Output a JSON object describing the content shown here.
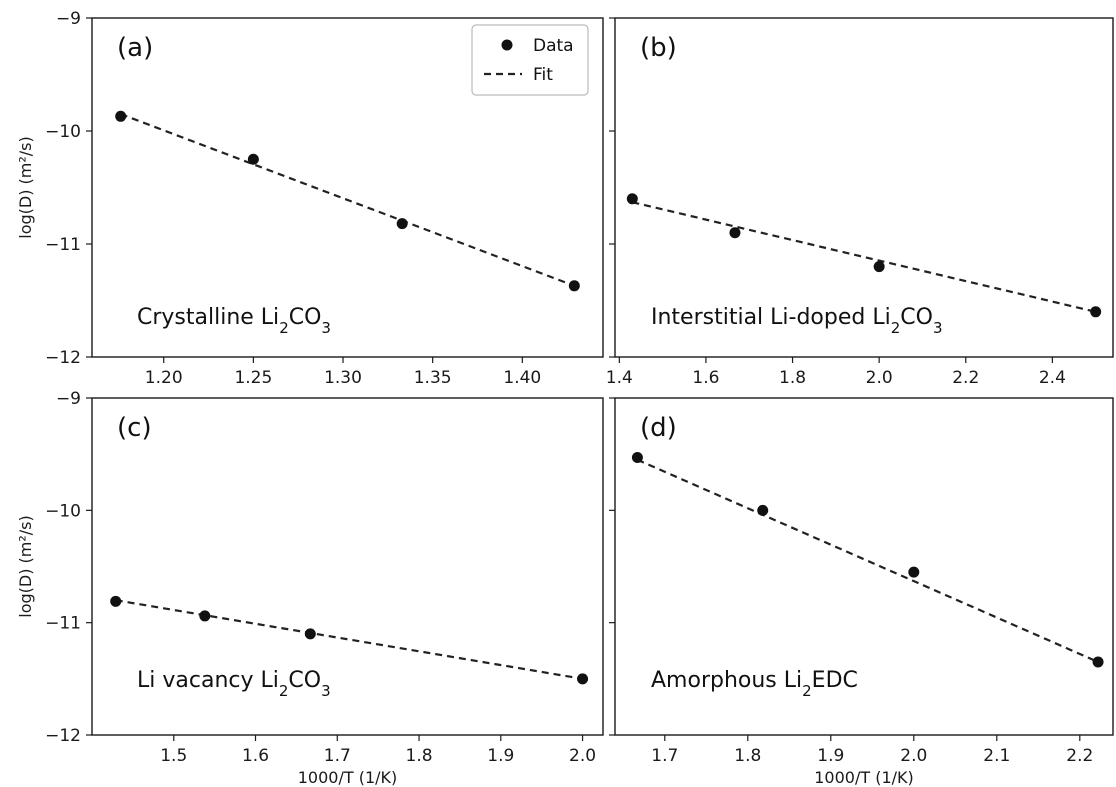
{
  "chart_data": [
    {
      "type": "scatter",
      "panel_label": "(a)",
      "annotation": {
        "prefix": "Crystalline Li",
        "sub1": "2",
        "mid": "CO",
        "sub2": "3",
        "suffix": ""
      },
      "ylabel": "log(D) (m²/s)",
      "xlabel": "",
      "xlim": [
        1.16,
        1.445
      ],
      "ylim": [
        -12,
        -9
      ],
      "xticks": [
        "1.20",
        "1.25",
        "1.30",
        "1.35",
        "1.40"
      ],
      "yticks": [
        "−9",
        "−10",
        "−11",
        "−12"
      ],
      "series": [
        {
          "name": "Data",
          "x": [
            1.176,
            1.25,
            1.333,
            1.429
          ],
          "y": [
            -9.87,
            -10.25,
            -10.82,
            -11.37
          ]
        },
        {
          "name": "Fit",
          "x": [
            1.176,
            1.429
          ],
          "y": [
            -9.85,
            -11.37
          ]
        }
      ],
      "legend": {
        "entries": [
          "Data",
          "Fit"
        ],
        "placement": "upper right"
      }
    },
    {
      "type": "scatter",
      "panel_label": "(b)",
      "annotation": {
        "prefix": "Interstitial Li-doped Li",
        "sub1": "2",
        "mid": "CO",
        "sub2": "3",
        "suffix": ""
      },
      "ylabel": "",
      "xlabel": "",
      "xlim": [
        1.39,
        2.54
      ],
      "ylim": [
        -12,
        -9
      ],
      "xticks": [
        "1.4",
        "1.6",
        "1.8",
        "2.0",
        "2.2",
        "2.4"
      ],
      "series": [
        {
          "name": "Data",
          "x": [
            1.43,
            1.667,
            2.0,
            2.5
          ],
          "y": [
            -10.6,
            -10.9,
            -11.2,
            -11.6
          ]
        },
        {
          "name": "Fit",
          "x": [
            1.43,
            2.5
          ],
          "y": [
            -10.63,
            -11.6
          ]
        }
      ]
    },
    {
      "type": "scatter",
      "panel_label": "(c)",
      "annotation": {
        "prefix": "Li vacancy Li",
        "sub1": "2",
        "mid": "CO",
        "sub2": "3",
        "suffix": ""
      },
      "ylabel": "log(D) (m²/s)",
      "xlabel": "1000/T (1/K)",
      "xlim": [
        1.4,
        2.025
      ],
      "ylim": [
        -12,
        -9
      ],
      "xticks": [
        "1.5",
        "1.6",
        "1.7",
        "1.8",
        "1.9",
        "2.0"
      ],
      "yticks": [
        "−9",
        "−10",
        "−11",
        "−12"
      ],
      "series": [
        {
          "name": "Data",
          "x": [
            1.429,
            1.538,
            1.667,
            2.0
          ],
          "y": [
            -10.81,
            -10.94,
            -11.1,
            -11.5
          ]
        },
        {
          "name": "Fit",
          "x": [
            1.429,
            2.0
          ],
          "y": [
            -10.8,
            -11.5
          ]
        }
      ]
    },
    {
      "type": "scatter",
      "panel_label": "(d)",
      "annotation": {
        "prefix": "Amorphous  Li",
        "sub1": "2",
        "mid": "EDC",
        "sub2": "",
        "suffix": ""
      },
      "ylabel": "",
      "xlabel": "1000/T (1/K)",
      "xlim": [
        1.64,
        2.24
      ],
      "ylim": [
        -12,
        -9
      ],
      "xticks": [
        "1.7",
        "1.8",
        "1.9",
        "2.0",
        "2.1",
        "2.2"
      ],
      "series": [
        {
          "name": "Data",
          "x": [
            1.667,
            1.818,
            2.0,
            2.222
          ],
          "y": [
            -9.53,
            -10.0,
            -10.55,
            -11.35
          ]
        },
        {
          "name": "Fit",
          "x": [
            1.667,
            2.222
          ],
          "y": [
            -9.55,
            -11.35
          ]
        }
      ]
    }
  ]
}
